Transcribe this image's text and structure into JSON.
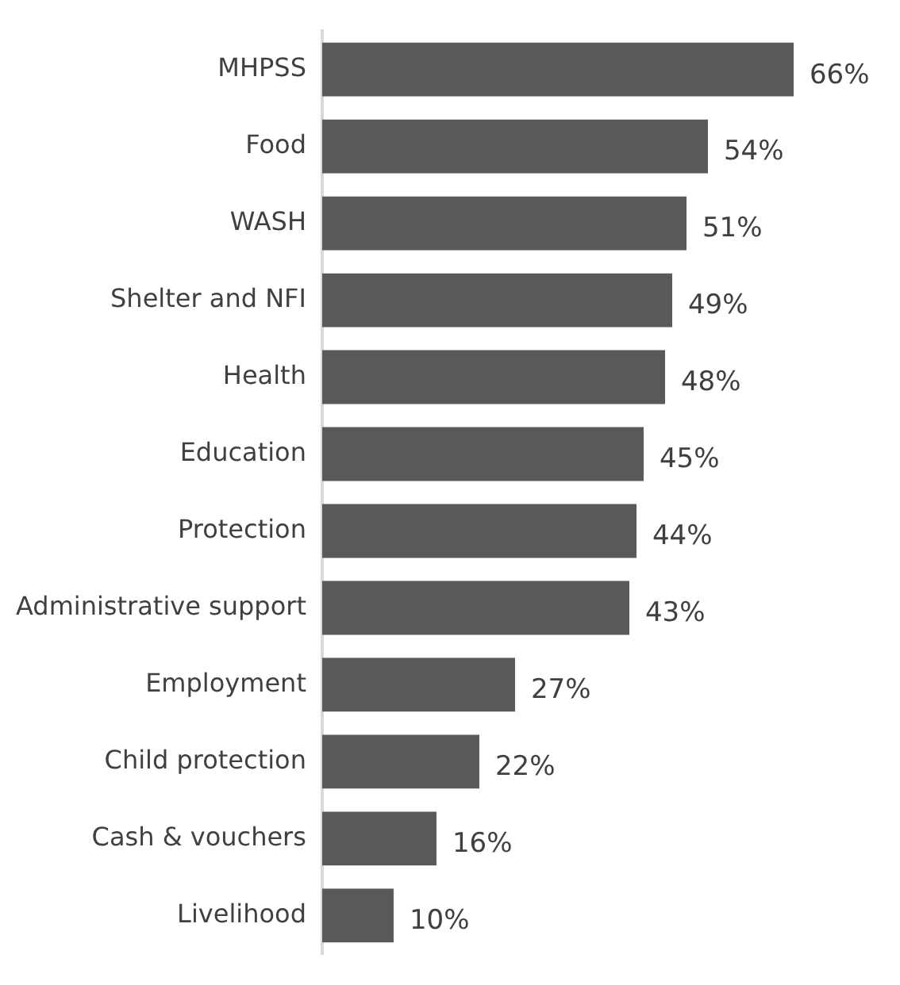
{
  "chart_data": {
    "type": "bar",
    "orientation": "horizontal",
    "categories": [
      "MHPSS",
      "Food",
      "WASH",
      "Shelter and NFI",
      "Health",
      "Education",
      "Protection",
      "Administrative support",
      "Employment",
      "Child protection",
      "Cash & vouchers",
      "Livelihood"
    ],
    "values": [
      66,
      54,
      51,
      49,
      48,
      45,
      44,
      43,
      27,
      22,
      16,
      10
    ],
    "value_labels": [
      "66%",
      "54%",
      "51%",
      "49%",
      "48%",
      "45%",
      "44%",
      "43%",
      "27%",
      "22%",
      "16%",
      "10%"
    ],
    "color": "#595959",
    "legend": false,
    "tick_labels": "y"
  }
}
